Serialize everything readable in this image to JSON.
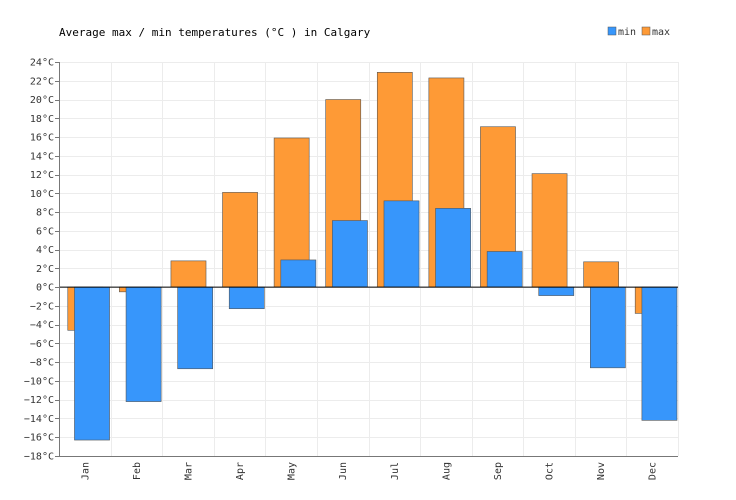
{
  "chart_data": {
    "type": "bar",
    "title": "Average max / min temperatures (°C ) in Calgary",
    "xlabel": "",
    "ylabel": "",
    "ylim": [
      -18,
      24
    ],
    "ytick_step": 2,
    "ytick_suffix": "°C",
    "categories": [
      "Jan",
      "Feb",
      "Mar",
      "Apr",
      "May",
      "Jun",
      "Jul",
      "Aug",
      "Sep",
      "Oct",
      "Nov",
      "Dec"
    ],
    "series": [
      {
        "name": "min",
        "color": "#3796fb",
        "values": [
          -16.3,
          -12.2,
          -8.7,
          -2.3,
          2.9,
          7.1,
          9.2,
          8.4,
          3.8,
          -0.9,
          -8.6,
          -14.2
        ]
      },
      {
        "name": "max",
        "color": "#fe9a36",
        "values": [
          -4.6,
          -0.5,
          2.8,
          10.1,
          15.9,
          20.0,
          22.9,
          22.3,
          17.1,
          12.1,
          2.7,
          -2.8
        ]
      }
    ],
    "grid": true,
    "legend": "top-right"
  }
}
